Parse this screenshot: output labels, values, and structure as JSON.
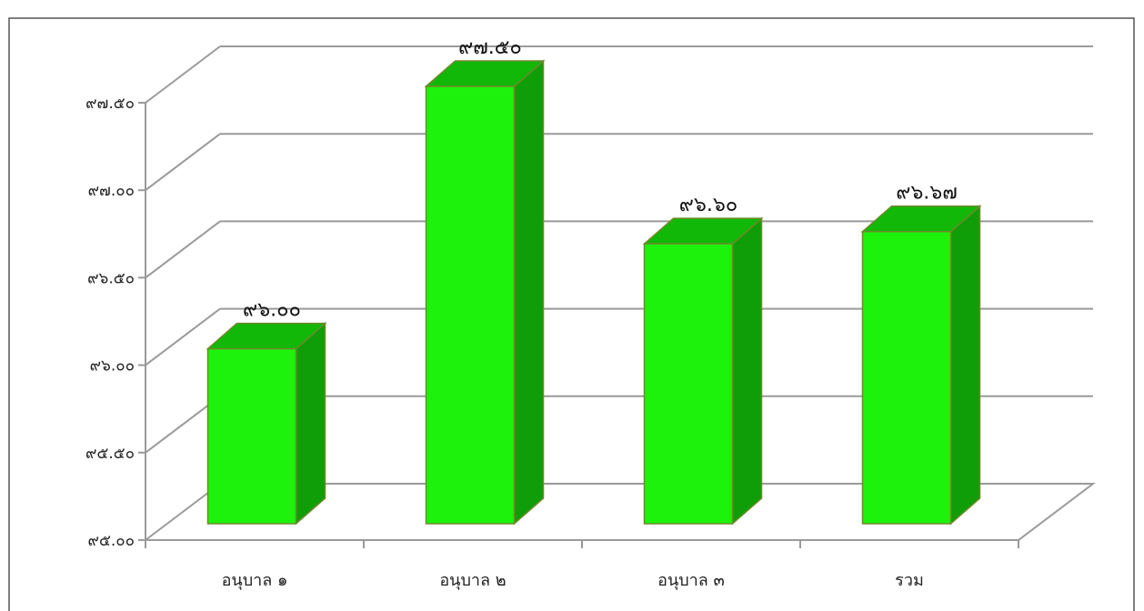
{
  "chart_data": {
    "type": "bar",
    "title": "",
    "xlabel": "",
    "ylabel": "",
    "categories": [
      "อนุบาล ๑",
      "อนุบาล ๒",
      "อนุบาล ๓",
      "รวม"
    ],
    "values": [
      96.0,
      97.5,
      96.6,
      96.67
    ],
    "data_labels": [
      "๙๖.๐๐",
      "๙๗.๕๐",
      "๙๖.๖๐",
      "๙๖.๖๗"
    ],
    "ylim": [
      95.0,
      97.5
    ],
    "y_ticks": [
      95.0,
      95.5,
      96.0,
      96.5,
      97.0,
      97.5
    ],
    "y_tick_labels": [
      "๙๕.๐๐",
      "๙๕.๕๐",
      "๙๖.๐๐",
      "๙๖.๕๐",
      "๙๗.๐๐",
      "๙๗.๕๐"
    ],
    "grid": true,
    "legend": "none",
    "style": "3d-column",
    "colors": {
      "bar_front": "#1cf20c",
      "bar_top": "#11b808",
      "bar_side": "#0f9e07",
      "bar_edge": "#6e8a2a",
      "grid": "#9a9a9a",
      "frame": "#555555"
    }
  }
}
